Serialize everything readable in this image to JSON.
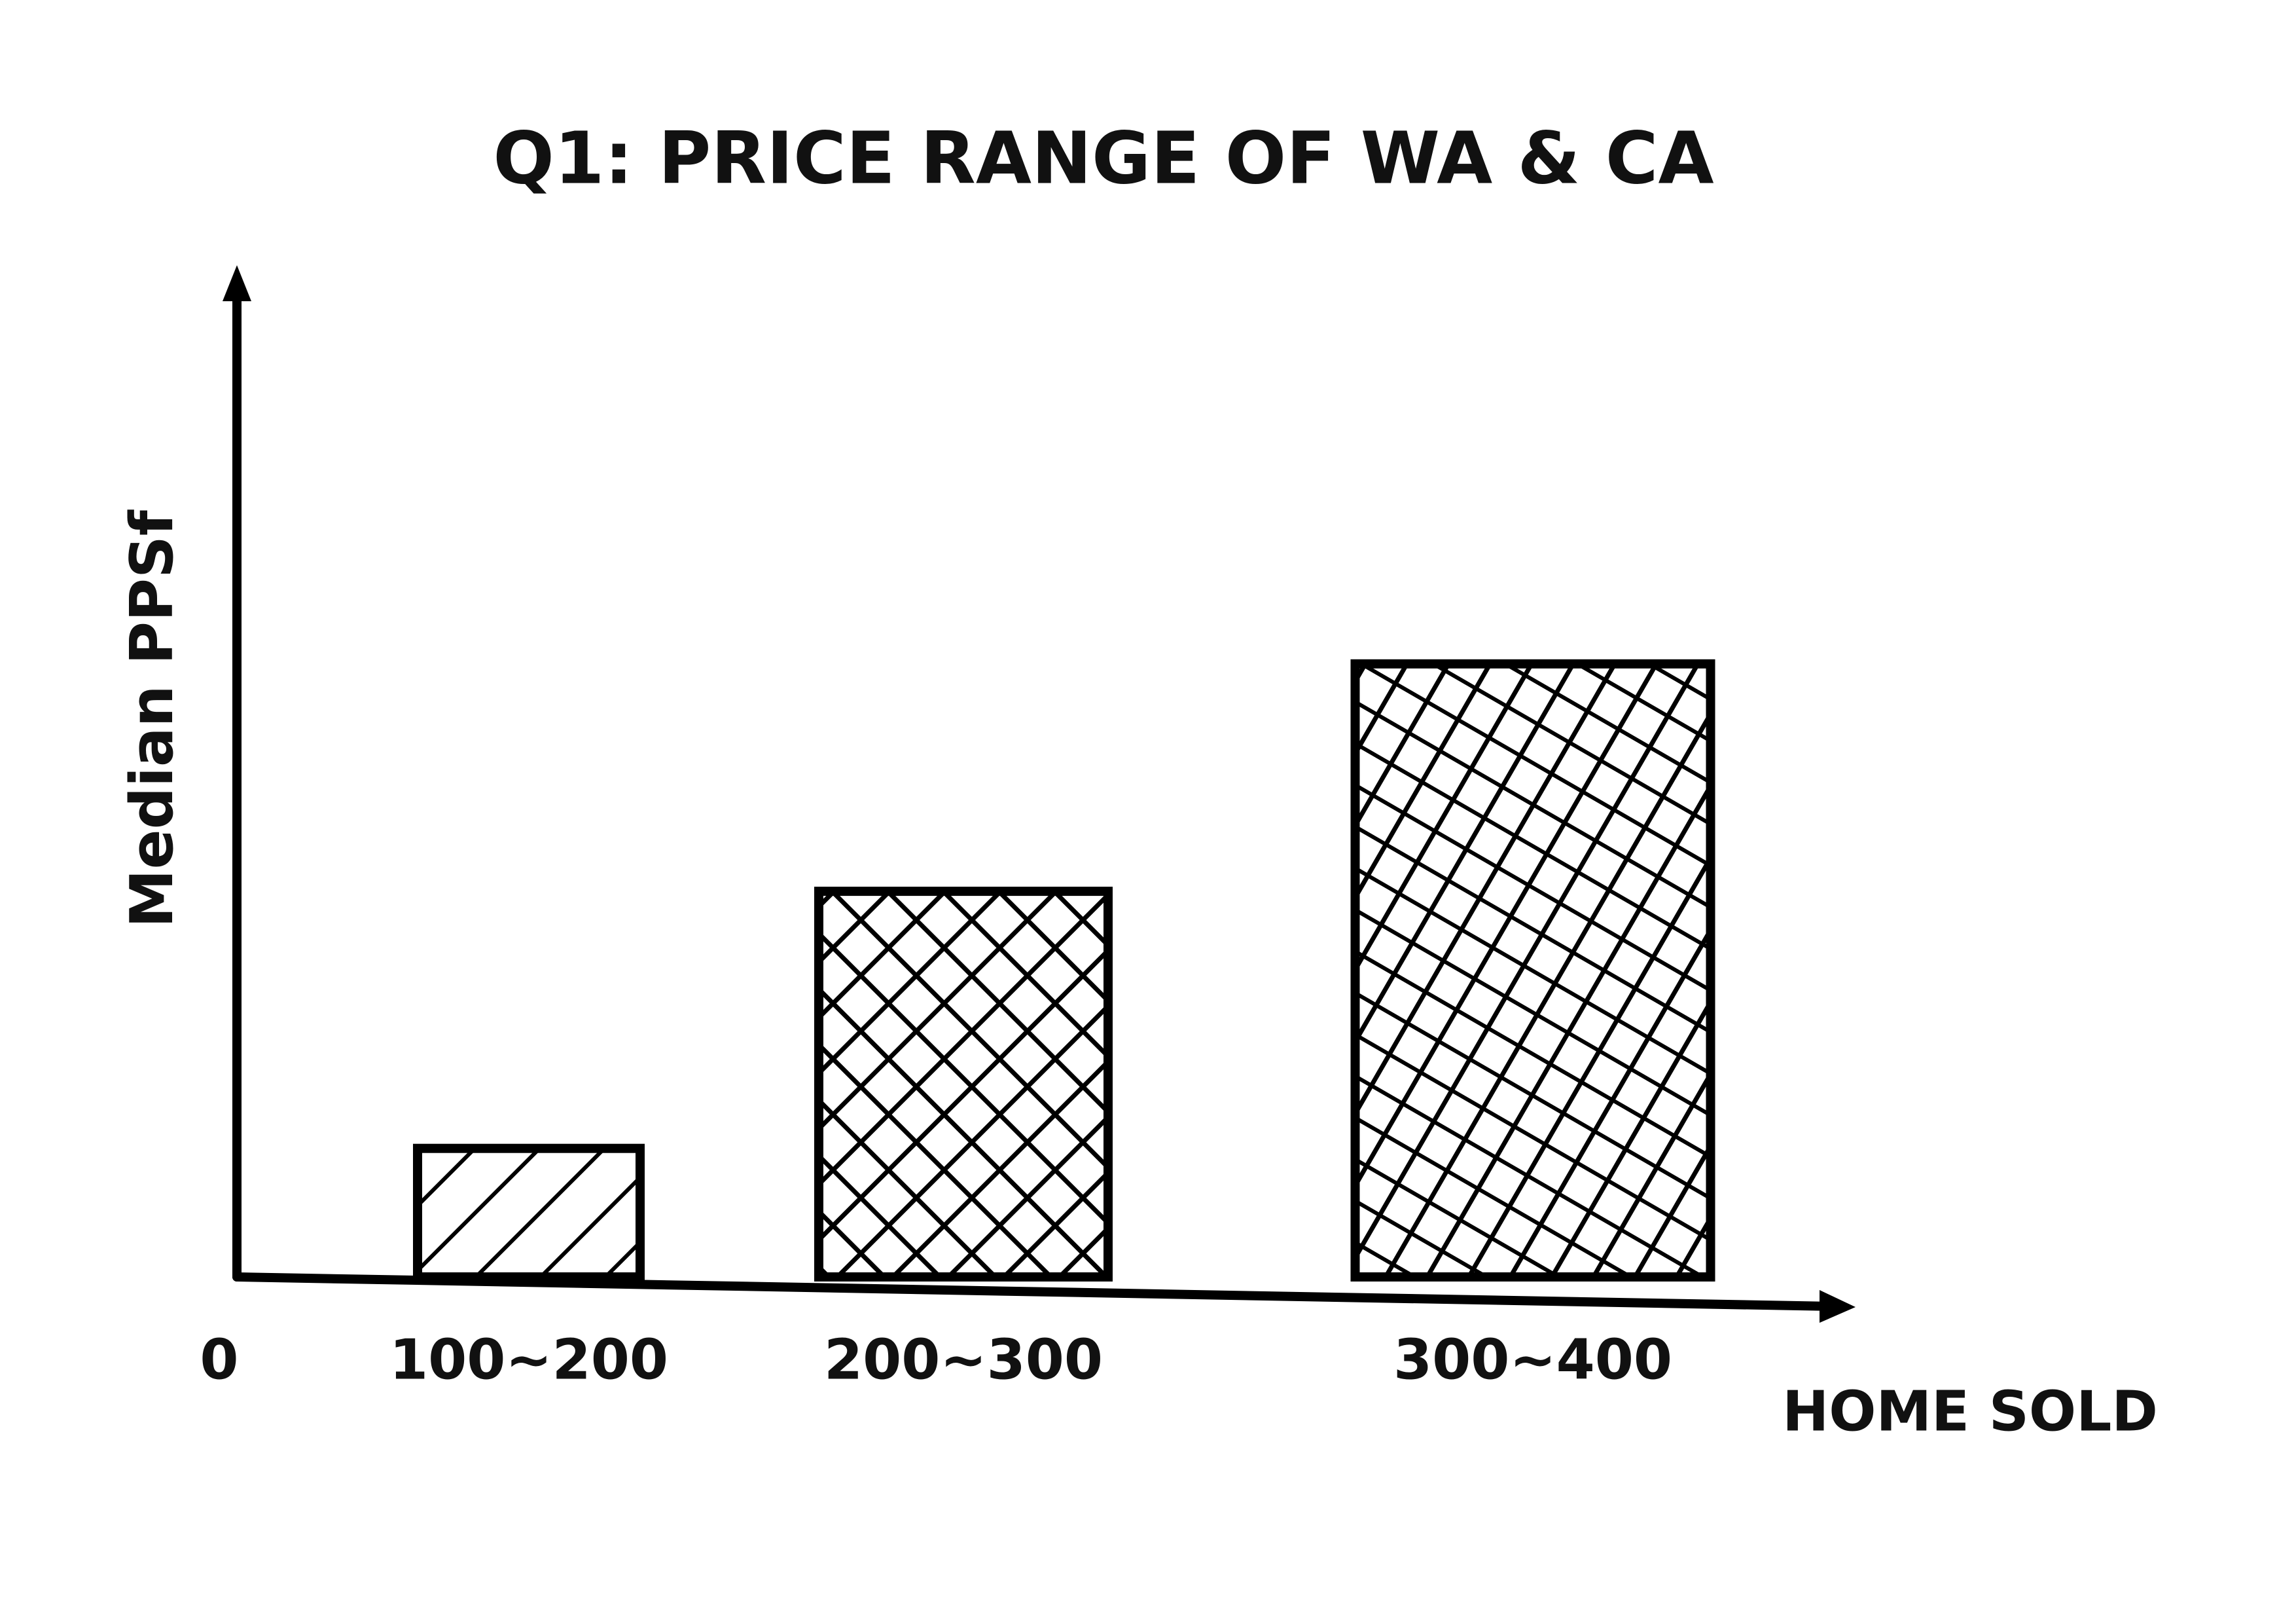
{
  "chart_data": {
    "type": "bar",
    "title": "Q1: PRICE RANGE OF WA & CA",
    "x_label": "HOME SOLD",
    "y_label": "Median PPSf",
    "categories": [
      "100~200",
      "200~300",
      "300~400"
    ],
    "values": [
      13,
      39,
      62
    ],
    "color": "#000000",
    "ylim": [
      0,
      100
    ],
    "yticks": [
      0
    ],
    "grid": false
  }
}
